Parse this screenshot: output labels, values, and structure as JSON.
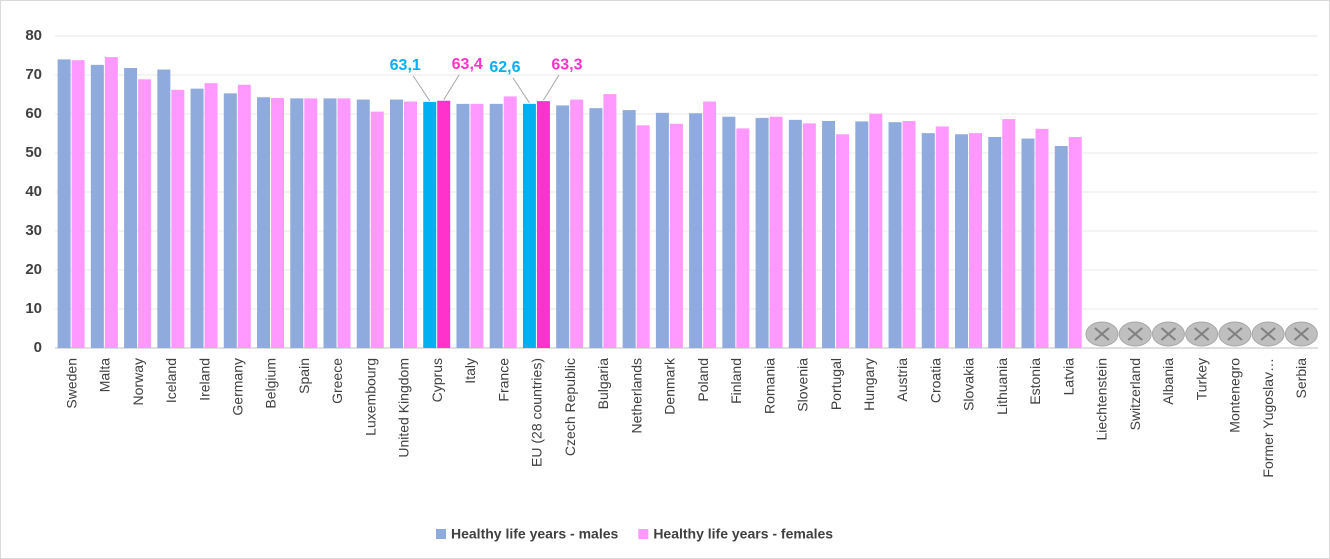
{
  "chart_data": {
    "type": "bar",
    "categories": [
      "Sweden",
      "Malta",
      "Norway",
      "Iceland",
      "Ireland",
      "Germany",
      "Belgium",
      "Spain",
      "Greece",
      "Luxembourg",
      "United Kingdom",
      "Cyprus",
      "Italy",
      "France",
      "EU (28 countries)",
      "Czech Republic",
      "Bulgaria",
      "Netherlands",
      "Denmark",
      "Poland",
      "Finland",
      "Romania",
      "Slovenia",
      "Portugal",
      "Hungary",
      "Austria",
      "Croatia",
      "Slovakia",
      "Lithuania",
      "Estonia",
      "Latvia",
      "Liechtenstein",
      "Switzerland",
      "Albania",
      "Turkey",
      "Montenegro",
      "Former Yugoslav…",
      "Serbia"
    ],
    "series": [
      {
        "name": "Healthy life years - males",
        "color": "#8faadc",
        "highlight_color": "#00b0f0",
        "values": [
          74,
          72.6,
          71.8,
          71.4,
          66.5,
          65.3,
          64.3,
          64,
          64,
          63.7,
          63.7,
          63.1,
          62.6,
          62.6,
          62.6,
          62.2,
          61.5,
          61,
          60.3,
          60.2,
          59.3,
          59,
          58.5,
          58.2,
          58.1,
          57.9,
          55.1,
          54.8,
          54.1,
          53.7,
          51.8,
          null,
          null,
          null,
          null,
          null,
          null,
          null
        ],
        "value_labels": [
          null,
          null,
          null,
          null,
          null,
          null,
          null,
          null,
          null,
          null,
          null,
          "63,1",
          null,
          null,
          "62,6",
          null,
          null,
          null,
          null,
          null,
          null,
          null,
          null,
          null,
          null,
          null,
          null,
          null,
          null,
          null,
          null,
          null,
          null,
          null,
          null,
          null,
          null,
          null
        ]
      },
      {
        "name": "Healthy life years - females",
        "color": "#ff99ff",
        "highlight_color": "#ff33cc",
        "values": [
          73.8,
          74.6,
          68.9,
          66.2,
          67.9,
          67.5,
          64.1,
          64,
          64,
          60.6,
          63.2,
          63.4,
          62.6,
          64.5,
          63.3,
          63.7,
          65.1,
          57.1,
          57.5,
          63.2,
          56.3,
          59.3,
          57.6,
          54.8,
          60.1,
          58.2,
          56.8,
          55.1,
          58.7,
          56.2,
          54.1,
          null,
          null,
          null,
          null,
          null,
          null,
          null
        ],
        "value_labels": [
          null,
          null,
          null,
          null,
          null,
          null,
          null,
          null,
          null,
          null,
          null,
          "63,4",
          null,
          null,
          "63,3",
          null,
          null,
          null,
          null,
          null,
          null,
          null,
          null,
          null,
          null,
          null,
          null,
          null,
          null,
          null,
          null,
          null,
          null,
          null,
          null,
          null,
          null,
          null
        ]
      }
    ],
    "ylim": [
      0,
      80
    ],
    "yticks": [
      0,
      10,
      20,
      30,
      40,
      50,
      60,
      70,
      80
    ],
    "grid": true,
    "legend": "bottom"
  }
}
